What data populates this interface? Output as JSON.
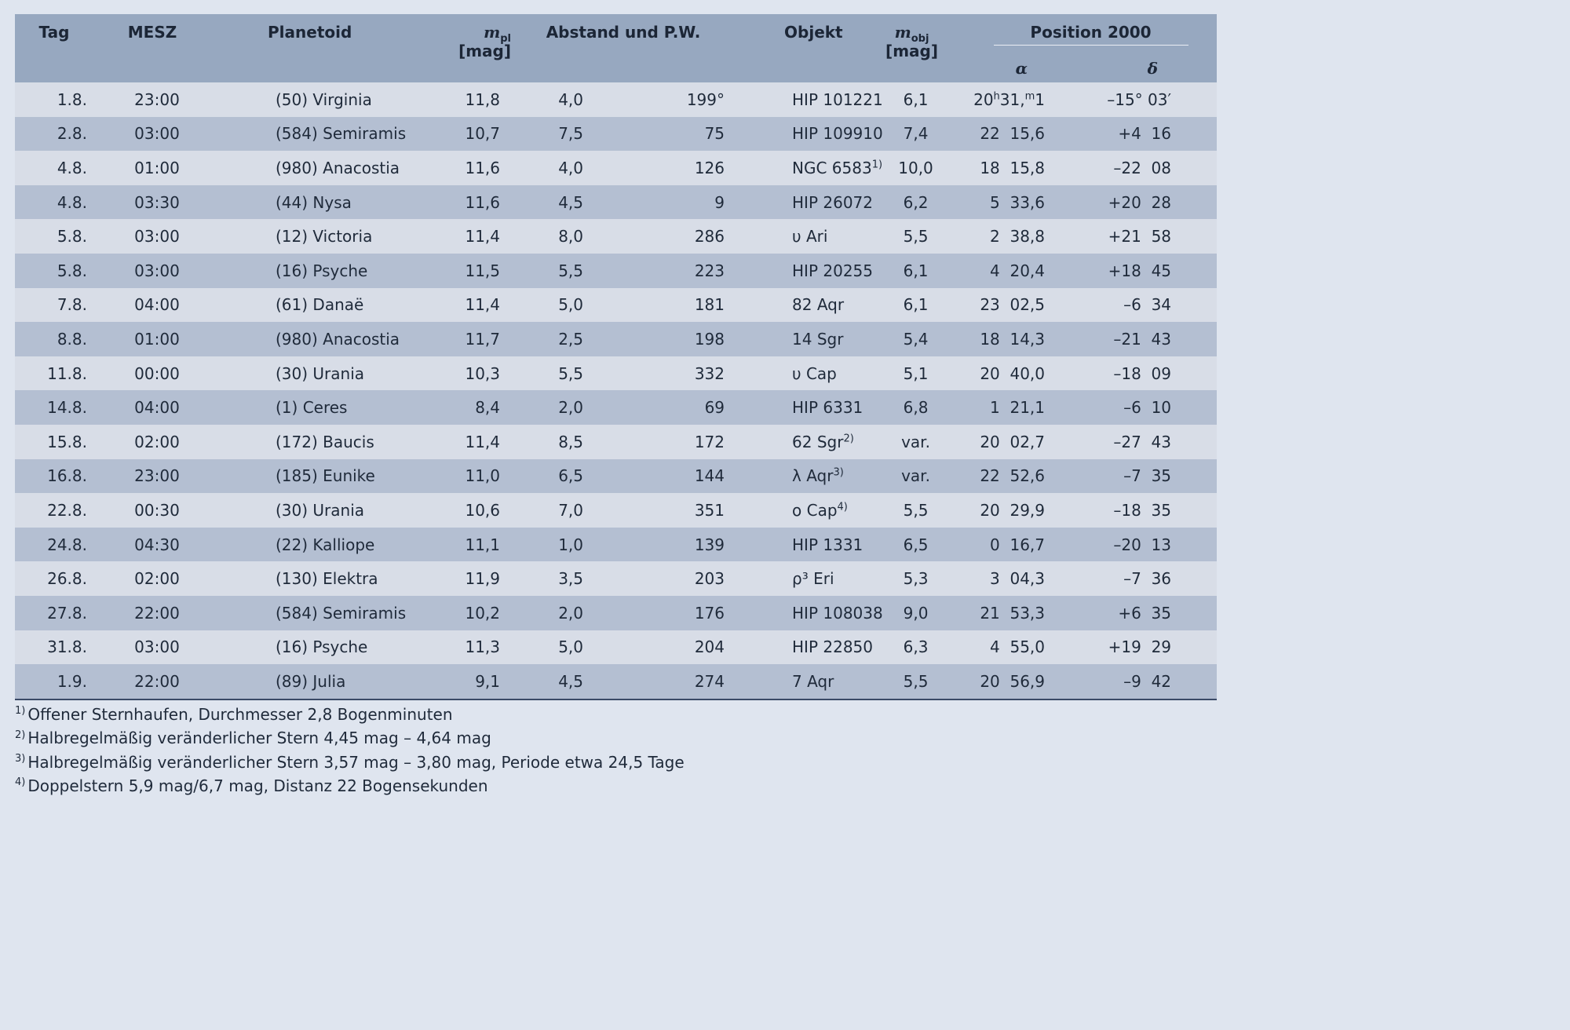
{
  "header": {
    "tag": "Tag",
    "mesz": "MESZ",
    "planetoid": "Planetoid",
    "mpl_symbol": "m",
    "mpl_sub": "pl",
    "mpl_unit": "[mag]",
    "abstand": "Abstand und P.W.",
    "objekt": "Objekt",
    "mobj_symbol": "m",
    "mobj_sub": "obj",
    "mobj_unit": "[mag]",
    "position": "Position 2000",
    "alpha": "α",
    "delta": "δ"
  },
  "rows": [
    {
      "tag": "1.8.",
      "mesz": "23:00",
      "planetoid": "(50) Virginia",
      "mpl": "11,8",
      "dist": "4,0",
      "pw": "199°",
      "obj": "HIP 101221",
      "obj_sup": "",
      "mobj": "6,1",
      "ra_h": "20",
      "ra_h_unit": "h",
      "ra_m": "31,",
      "ra_m_unit": "m",
      "ra_m_frac": "1",
      "dec": "–15° 03′"
    },
    {
      "tag": "2.8.",
      "mesz": "03:00",
      "planetoid": "(584) Semiramis",
      "mpl": "10,7",
      "dist": "7,5",
      "pw": "75",
      "obj": "HIP 109910",
      "obj_sup": "",
      "mobj": "7,4",
      "ra": "22  15,6",
      "dec": "+4  16"
    },
    {
      "tag": "4.8.",
      "mesz": "01:00",
      "planetoid": "(980) Anacostia",
      "mpl": "11,6",
      "dist": "4,0",
      "pw": "126",
      "obj": "NGC 6583",
      "obj_sup": "1)",
      "mobj": "10,0",
      "ra": "18  15,8",
      "dec": "–22  08"
    },
    {
      "tag": "4.8.",
      "mesz": "03:30",
      "planetoid": "(44) Nysa",
      "mpl": "11,6",
      "dist": "4,5",
      "pw": "9",
      "obj": "HIP 26072",
      "obj_sup": "",
      "mobj": "6,2",
      "ra": "5  33,6",
      "dec": "+20  28"
    },
    {
      "tag": "5.8.",
      "mesz": "03:00",
      "planetoid": "(12) Victoria",
      "mpl": "11,4",
      "dist": "8,0",
      "pw": "286",
      "obj": "υ Ari",
      "obj_sup": "",
      "mobj": "5,5",
      "ra": "2  38,8",
      "dec": "+21  58"
    },
    {
      "tag": "5.8.",
      "mesz": "03:00",
      "planetoid": "(16) Psyche",
      "mpl": "11,5",
      "dist": "5,5",
      "pw": "223",
      "obj": "HIP 20255",
      "obj_sup": "",
      "mobj": "6,1",
      "ra": "4  20,4",
      "dec": "+18  45"
    },
    {
      "tag": "7.8.",
      "mesz": "04:00",
      "planetoid": "(61) Danaë",
      "mpl": "11,4",
      "dist": "5,0",
      "pw": "181",
      "obj": "82 Aqr",
      "obj_sup": "",
      "mobj": "6,1",
      "ra": "23  02,5",
      "dec": "–6  34"
    },
    {
      "tag": "8.8.",
      "mesz": "01:00",
      "planetoid": "(980) Anacostia",
      "mpl": "11,7",
      "dist": "2,5",
      "pw": "198",
      "obj": "14 Sgr",
      "obj_sup": "",
      "mobj": "5,4",
      "ra": "18  14,3",
      "dec": "–21  43"
    },
    {
      "tag": "11.8.",
      "mesz": "00:00",
      "planetoid": "(30) Urania",
      "mpl": "10,3",
      "dist": "5,5",
      "pw": "332",
      "obj": "υ Cap",
      "obj_sup": "",
      "mobj": "5,1",
      "ra": "20  40,0",
      "dec": "–18  09"
    },
    {
      "tag": "14.8.",
      "mesz": "04:00",
      "planetoid": "(1) Ceres",
      "mpl": "8,4",
      "dist": "2,0",
      "pw": "69",
      "obj": "HIP 6331",
      "obj_sup": "",
      "mobj": "6,8",
      "ra": "1  21,1",
      "dec": "–6  10"
    },
    {
      "tag": "15.8.",
      "mesz": "02:00",
      "planetoid": "(172) Baucis",
      "mpl": "11,4",
      "dist": "8,5",
      "pw": "172",
      "obj": "62 Sgr",
      "obj_sup": "2)",
      "mobj": "var.",
      "ra": "20  02,7",
      "dec": "–27  43"
    },
    {
      "tag": "16.8.",
      "mesz": "23:00",
      "planetoid": "(185) Eunike",
      "mpl": "11,0",
      "dist": "6,5",
      "pw": "144",
      "obj": "λ Aqr",
      "obj_sup": "3)",
      "mobj": "var.",
      "ra": "22  52,6",
      "dec": "–7  35"
    },
    {
      "tag": "22.8.",
      "mesz": "00:30",
      "planetoid": "(30) Urania",
      "mpl": "10,6",
      "dist": "7,0",
      "pw": "351",
      "obj": "ο Cap",
      "obj_sup": "4)",
      "mobj": "5,5",
      "ra": "20  29,9",
      "dec": "–18  35"
    },
    {
      "tag": "24.8.",
      "mesz": "04:30",
      "planetoid": "(22) Kalliope",
      "mpl": "11,1",
      "dist": "1,0",
      "pw": "139",
      "obj": "HIP 1331",
      "obj_sup": "",
      "mobj": "6,5",
      "ra": "0  16,7",
      "dec": "–20  13"
    },
    {
      "tag": "26.8.",
      "mesz": "02:00",
      "planetoid": "(130) Elektra",
      "mpl": "11,9",
      "dist": "3,5",
      "pw": "203",
      "obj": "ρ³ Eri",
      "obj_sup": "",
      "mobj": "5,3",
      "ra": "3  04,3",
      "dec": "–7  36"
    },
    {
      "tag": "27.8.",
      "mesz": "22:00",
      "planetoid": "(584) Semiramis",
      "mpl": "10,2",
      "dist": "2,0",
      "pw": "176",
      "obj": "HIP 108038",
      "obj_sup": "",
      "mobj": "9,0",
      "ra": "21  53,3",
      "dec": "+6  35"
    },
    {
      "tag": "31.8.",
      "mesz": "03:00",
      "planetoid": "(16) Psyche",
      "mpl": "11,3",
      "dist": "5,0",
      "pw": "204",
      "obj": "HIP 22850",
      "obj_sup": "",
      "mobj": "6,3",
      "ra": "4  55,0",
      "dec": "+19  29"
    },
    {
      "tag": "1.9.",
      "mesz": "22:00",
      "planetoid": "(89) Julia",
      "mpl": "9,1",
      "dist": "4,5",
      "pw": "274",
      "obj": "7 Aqr",
      "obj_sup": "",
      "mobj": "5,5",
      "ra": "20  56,9",
      "dec": "–9  42"
    }
  ],
  "footnotes": [
    {
      "num": "1)",
      "text": "Offener Sternhaufen, Durchmesser 2,8 Bogenminuten"
    },
    {
      "num": "2)",
      "text": "Halbregelmäßig veränderlicher Stern 4,45 mag – 4,64 mag"
    },
    {
      "num": "3)",
      "text": "Halbregelmäßig veränderlicher Stern 3,57 mag – 3,80 mag, Periode etwa 24,5 Tage"
    },
    {
      "num": "4)",
      "text": "Doppelstern 5,9 mag/6,7 mag, Distanz 22 Bogensekunden"
    }
  ]
}
